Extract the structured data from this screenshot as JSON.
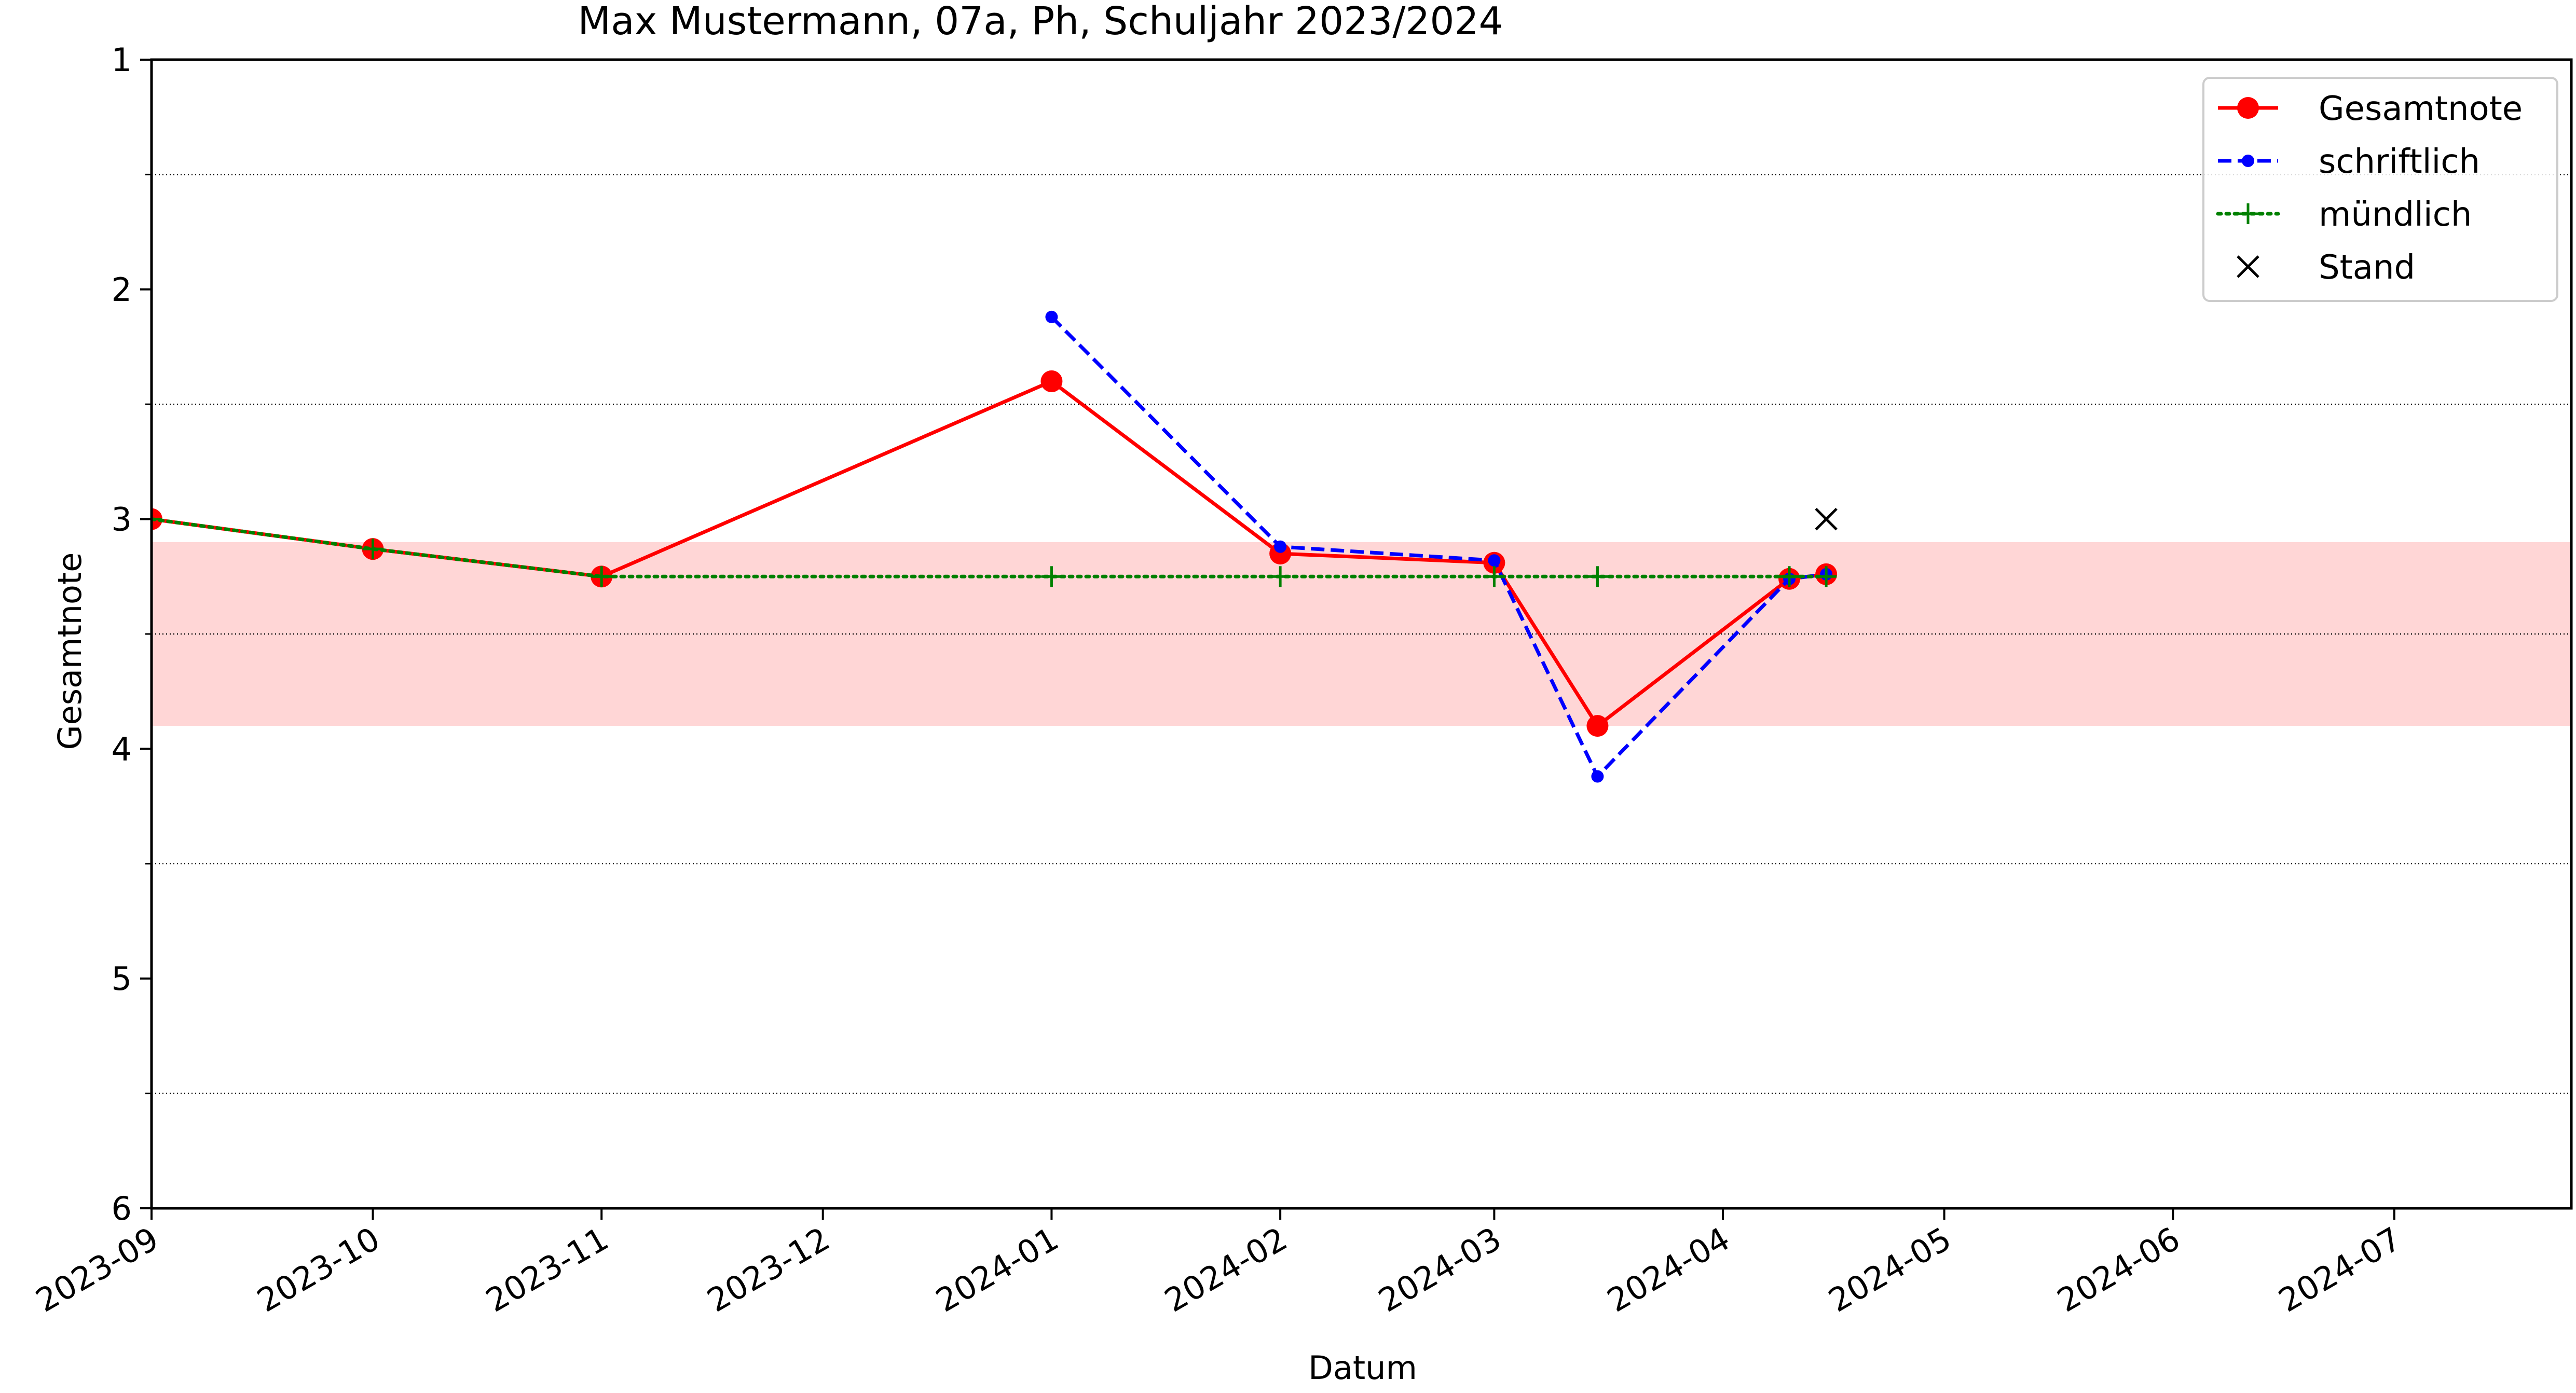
{
  "chart_data": {
    "type": "line",
    "title": "Max Mustermann, 07a, Ph, Schuljahr 2023/2024",
    "xlabel": "Datum",
    "ylabel": "Gesamtnote",
    "x_ticks": [
      "2023-09",
      "2023-10",
      "2023-11",
      "2023-12",
      "2024-01",
      "2024-02",
      "2024-03",
      "2024-04",
      "2024-05",
      "2024-06",
      "2024-07"
    ],
    "xlim": [
      "2023-09-01",
      "2024-07-25"
    ],
    "y_ticks": [
      "1",
      "2",
      "3",
      "4",
      "5",
      "6"
    ],
    "ylim": [
      1,
      6
    ],
    "y_inverted": true,
    "grid": "horizontal dotted lines at minor ticks (1.5, 2.5, 3.5, 4.5, 5.5)",
    "legend_position": "top-right",
    "band": {
      "from": 3.1,
      "to": 3.9,
      "color": "#ffd6d6"
    },
    "series": [
      {
        "name": "Gesamtnote",
        "color": "#ff0000",
        "style": "solid",
        "marker": "circle",
        "points": [
          {
            "x": "2023-09-01",
            "y": 3.0
          },
          {
            "x": "2023-10-01",
            "y": 3.13
          },
          {
            "x": "2023-11-01",
            "y": 3.25
          },
          {
            "x": "2024-01-01",
            "y": 2.4
          },
          {
            "x": "2024-02-01",
            "y": 3.15
          },
          {
            "x": "2024-03-01",
            "y": 3.19
          },
          {
            "x": "2024-03-15",
            "y": 3.9
          },
          {
            "x": "2024-04-10",
            "y": 3.26
          },
          {
            "x": "2024-04-15",
            "y": 3.24
          }
        ]
      },
      {
        "name": "schriftlich",
        "color": "#0000ff",
        "style": "dashed",
        "marker": "small-circle",
        "points": [
          {
            "x": "2024-01-01",
            "y": 2.12
          },
          {
            "x": "2024-02-01",
            "y": 3.12
          },
          {
            "x": "2024-03-01",
            "y": 3.18
          },
          {
            "x": "2024-03-15",
            "y": 4.12
          },
          {
            "x": "2024-04-10",
            "y": 3.26
          },
          {
            "x": "2024-04-15",
            "y": 3.24
          }
        ]
      },
      {
        "name": "mündlich",
        "color": "#008000",
        "style": "dotted",
        "marker": "plus",
        "points": [
          {
            "x": "2023-09-01",
            "y": 3.0
          },
          {
            "x": "2023-10-01",
            "y": 3.13
          },
          {
            "x": "2023-11-01",
            "y": 3.25
          },
          {
            "x": "2024-01-01",
            "y": 3.25
          },
          {
            "x": "2024-02-01",
            "y": 3.25
          },
          {
            "x": "2024-03-01",
            "y": 3.25
          },
          {
            "x": "2024-03-15",
            "y": 3.25
          },
          {
            "x": "2024-04-10",
            "y": 3.25
          },
          {
            "x": "2024-04-15",
            "y": 3.25
          }
        ]
      },
      {
        "name": "Stand",
        "color": "#000000",
        "style": "none",
        "marker": "x",
        "points": [
          {
            "x": "2024-04-15",
            "y": 3.0
          }
        ]
      }
    ]
  }
}
